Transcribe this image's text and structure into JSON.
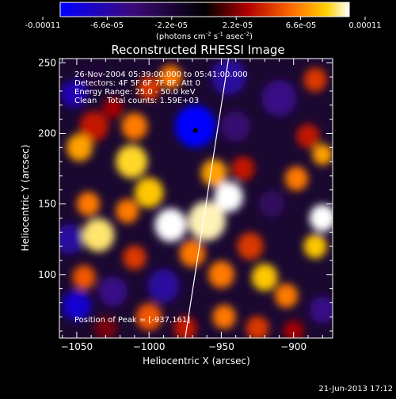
{
  "colorbar": {
    "tick_labels": [
      "-0.00011",
      "-6.6e-05",
      "-2.2e-05",
      "2.2e-05",
      "6.6e-05",
      "0.00011"
    ],
    "tick_values": [
      -0.00011,
      -6.6e-05,
      -2.2e-05,
      2.2e-05,
      6.6e-05,
      0.00011
    ],
    "unit_label": "(photons cm",
    "unit_exp1": "-2",
    "unit_mid": " s",
    "unit_exp2": "-1",
    "unit_end": " asec",
    "unit_exp3": "-2",
    "unit_close": ")"
  },
  "chart_data": {
    "type": "heatmap",
    "title": "Reconstructed RHESSI Image",
    "xlabel": "Heliocentric X (arcsec)",
    "ylabel": "Heliocentric Y (arcsec)",
    "xlim": [
      -1062,
      -873
    ],
    "ylim": [
      55,
      253
    ],
    "x_ticks": [
      -1050,
      -1000,
      -950,
      -900
    ],
    "x_tick_labels": [
      "−1050",
      "−1000",
      "−950",
      "−900"
    ],
    "y_ticks": [
      100,
      150,
      200,
      250
    ],
    "y_tick_labels": [
      "100",
      "150",
      "200",
      "250"
    ],
    "vmin": -0.00011,
    "vmax": 0.00011,
    "annotations": [
      "26-Nov-2004 05:39:00.000 to 05:41:00.000",
      "Detectors: 4F 5F 6F 7F 8F, Att 0",
      "Energy Range: 25.0 - 50.0 keV",
      "Clean    Total counts: 1.59E+03"
    ],
    "peak_label": "Position of Peak = [-937,161]",
    "peak": {
      "x": -937,
      "y": 161
    },
    "limb_line": [
      [
        -975,
        55
      ],
      [
        -945,
        253
      ]
    ],
    "dark_spot": {
      "x": -968,
      "y": 202
    },
    "blobs": [
      {
        "x": -1052,
        "y": 228,
        "v": -8e-05,
        "r": 9
      },
      {
        "x": -1040,
        "y": 240,
        "v": -2e-05,
        "r": 8
      },
      {
        "x": -1038,
        "y": 205,
        "v": 4e-05,
        "r": 10
      },
      {
        "x": -1048,
        "y": 190,
        "v": 8e-05,
        "r": 9
      },
      {
        "x": -1025,
        "y": 218,
        "v": 3e-05,
        "r": 7
      },
      {
        "x": -1010,
        "y": 205,
        "v": 7e-05,
        "r": 9
      },
      {
        "x": -1012,
        "y": 180,
        "v": 9.5e-05,
        "r": 11
      },
      {
        "x": -1000,
        "y": 232,
        "v": 5e-05,
        "r": 8
      },
      {
        "x": -985,
        "y": 240,
        "v": 7e-05,
        "r": 8
      },
      {
        "x": -968,
        "y": 205,
        "v": -0.00011,
        "r": 14
      },
      {
        "x": -945,
        "y": 240,
        "v": -7e-05,
        "r": 12
      },
      {
        "x": -940,
        "y": 205,
        "v": -5e-05,
        "r": 10
      },
      {
        "x": -910,
        "y": 225,
        "v": -6e-05,
        "r": 12
      },
      {
        "x": -885,
        "y": 238,
        "v": 5e-05,
        "r": 8
      },
      {
        "x": -890,
        "y": 198,
        "v": 4e-05,
        "r": 8
      },
      {
        "x": -880,
        "y": 185,
        "v": 8e-05,
        "r": 7
      },
      {
        "x": -1042,
        "y": 150,
        "v": 7e-05,
        "r": 8
      },
      {
        "x": -1055,
        "y": 125,
        "v": -7e-05,
        "r": 10
      },
      {
        "x": -1035,
        "y": 128,
        "v": 0.0001,
        "r": 11
      },
      {
        "x": -1015,
        "y": 145,
        "v": 7e-05,
        "r": 8
      },
      {
        "x": -1000,
        "y": 158,
        "v": 9e-05,
        "r": 10
      },
      {
        "x": -985,
        "y": 135,
        "v": 0.00011,
        "r": 11
      },
      {
        "x": -960,
        "y": 138,
        "v": 0.000105,
        "r": 13
      },
      {
        "x": -945,
        "y": 155,
        "v": 0.00011,
        "r": 10
      },
      {
        "x": -955,
        "y": 172,
        "v": 8e-05,
        "r": 9
      },
      {
        "x": -935,
        "y": 175,
        "v": 4e-05,
        "r": 8
      },
      {
        "x": -915,
        "y": 150,
        "v": -4e-05,
        "r": 9
      },
      {
        "x": -898,
        "y": 168,
        "v": 7e-05,
        "r": 8
      },
      {
        "x": -880,
        "y": 140,
        "v": 0.00011,
        "r": 9
      },
      {
        "x": -885,
        "y": 120,
        "v": 9e-05,
        "r": 8
      },
      {
        "x": -1045,
        "y": 98,
        "v": 6e-05,
        "r": 8
      },
      {
        "x": -1050,
        "y": 78,
        "v": -9e-05,
        "r": 10
      },
      {
        "x": -1025,
        "y": 88,
        "v": -6e-05,
        "r": 10
      },
      {
        "x": -1010,
        "y": 112,
        "v": 5e-05,
        "r": 8
      },
      {
        "x": -990,
        "y": 92,
        "v": -7e-05,
        "r": 11
      },
      {
        "x": -970,
        "y": 115,
        "v": 7e-05,
        "r": 9
      },
      {
        "x": -950,
        "y": 100,
        "v": 7e-05,
        "r": 9
      },
      {
        "x": -930,
        "y": 120,
        "v": 5e-05,
        "r": 9
      },
      {
        "x": -920,
        "y": 98,
        "v": 9e-05,
        "r": 9
      },
      {
        "x": -905,
        "y": 85,
        "v": 7e-05,
        "r": 8
      },
      {
        "x": -880,
        "y": 75,
        "v": -6e-05,
        "r": 9
      },
      {
        "x": -1030,
        "y": 62,
        "v": 2e-05,
        "r": 8
      },
      {
        "x": -1000,
        "y": 70,
        "v": 6e-05,
        "r": 9
      },
      {
        "x": -975,
        "y": 62,
        "v": 4e-05,
        "r": 8
      },
      {
        "x": -948,
        "y": 70,
        "v": 7e-05,
        "r": 8
      },
      {
        "x": -925,
        "y": 62,
        "v": 5e-05,
        "r": 8
      },
      {
        "x": -900,
        "y": 60,
        "v": 3e-05,
        "r": 7
      }
    ]
  },
  "footer": {
    "timestamp": "21-Jun-2013 17:12"
  }
}
